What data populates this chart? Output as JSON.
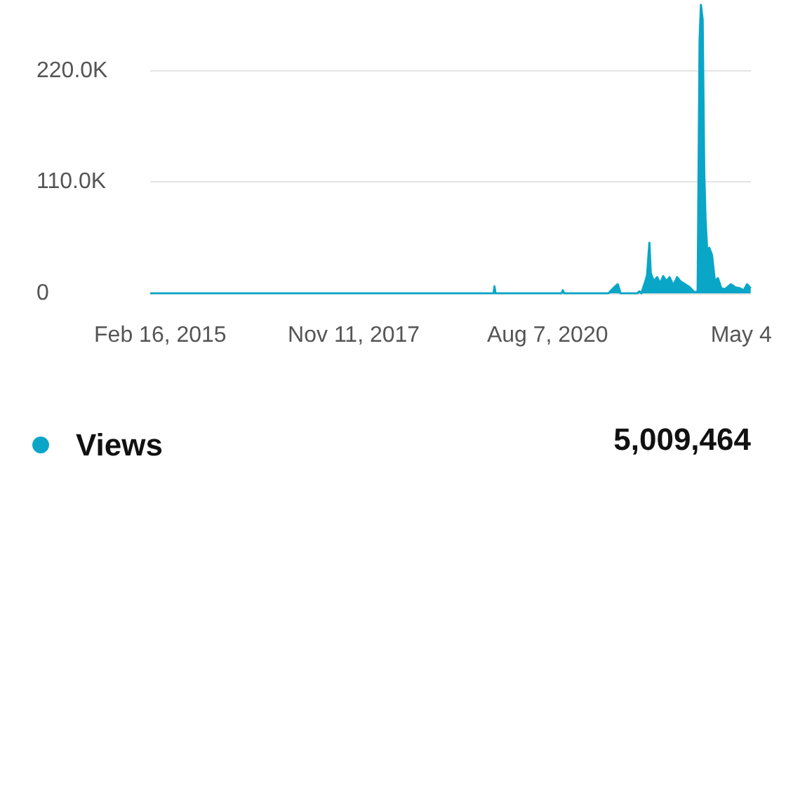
{
  "chart_data": {
    "type": "area",
    "x": [
      "2014-12-26",
      "2019-11-03",
      "2019-11-07",
      "2019-11-13",
      "2020-10-18",
      "2020-10-25",
      "2020-11-01",
      "2021-06-17",
      "2021-07-23",
      "2021-08-05",
      "2021-08-19",
      "2021-11-14",
      "2021-11-24",
      "2021-12-04",
      "2021-12-22",
      "2022-01-03",
      "2022-01-15",
      "2022-01-22",
      "2022-02-07",
      "2022-02-24",
      "2022-03-12",
      "2022-03-27",
      "2022-04-13",
      "2022-04-29",
      "2022-05-19",
      "2022-06-07",
      "2022-06-24",
      "2022-07-18",
      "2022-08-11",
      "2022-09-04",
      "2022-09-21",
      "2022-10-01",
      "2022-10-08",
      "2022-10-17",
      "2022-10-25",
      "2022-11-01",
      "2022-11-10",
      "2022-11-20",
      "2022-12-04",
      "2022-12-19",
      "2023-01-04",
      "2023-01-21",
      "2023-02-09",
      "2023-03-11",
      "2023-04-03",
      "2023-04-27",
      "2023-05-17",
      "2023-06-03",
      "2023-06-22"
    ],
    "series": [
      {
        "name": "Views",
        "color": "#0aa6c8",
        "values": [
          0,
          0,
          7000,
          0,
          0,
          3000,
          0,
          0,
          7000,
          9000,
          0,
          0,
          2000,
          0,
          10000,
          18000,
          50000,
          20000,
          12000,
          16000,
          10000,
          17000,
          12000,
          16000,
          8000,
          16000,
          12000,
          9000,
          6000,
          1000,
          2000,
          250000,
          285000,
          270000,
          120000,
          72000,
          40000,
          45000,
          38000,
          12000,
          15000,
          5000,
          4000,
          9000,
          6000,
          5000,
          3000,
          9000,
          5000
        ]
      }
    ],
    "xlim": [
      "2014-12-26",
      "2023-06-23"
    ],
    "xticks": [
      {
        "value": "2015-02-16",
        "label": "Feb 16, 2015"
      },
      {
        "value": "2017-11-11",
        "label": "Nov 11, 2017"
      },
      {
        "value": "2020-08-07",
        "label": "Aug 7, 2020"
      },
      {
        "value": "2023-05-04",
        "label": "May 4"
      }
    ],
    "ylim": [
      0,
      287000
    ],
    "yticks": [
      0,
      {
        "value": 110000,
        "label": "110.0K"
      },
      {
        "value": 220000,
        "label": "220.0K"
      }
    ],
    "grid": "y",
    "legend": "bottom",
    "annotations": [
      "5,009,464"
    ]
  }
}
